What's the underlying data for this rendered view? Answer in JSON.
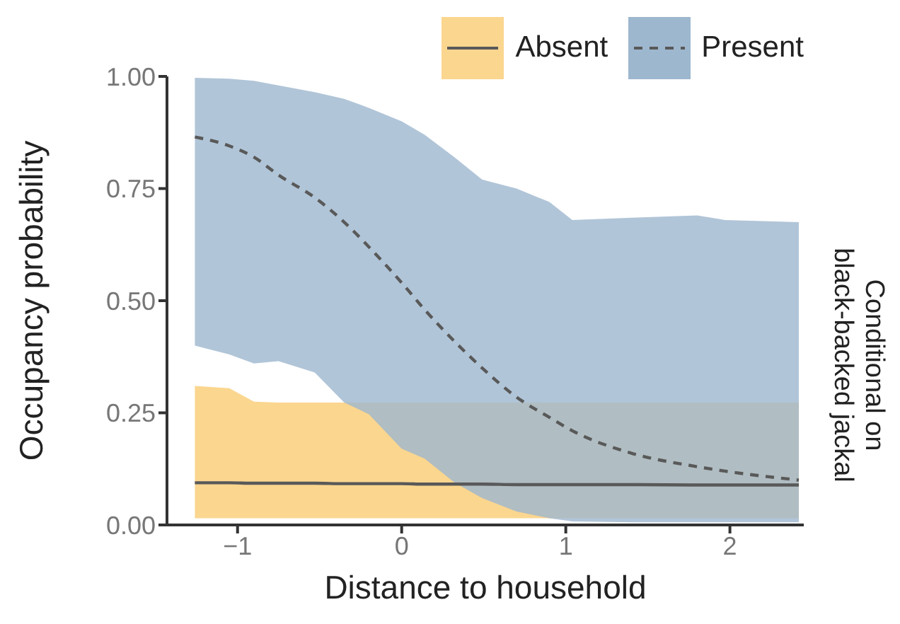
{
  "chart_data": {
    "type": "line",
    "xlabel": "Distance to household",
    "ylabel": "Occupancy probability",
    "y2label": "Conditional on\nblack-backed jackal",
    "x": [
      -1.26,
      -1.05,
      -0.9,
      -0.75,
      -0.53,
      -0.35,
      -0.2,
      0,
      0.14,
      0.32,
      0.49,
      0.7,
      0.9,
      1.04,
      1.4,
      1.8,
      1.97,
      2.42
    ],
    "series": [
      {
        "name": "Absent",
        "color": "#595959",
        "line_style": "solid",
        "values": [
          0.094,
          0.094,
          0.093,
          0.093,
          0.093,
          0.092,
          0.092,
          0.092,
          0.091,
          0.091,
          0.091,
          0.09,
          0.09,
          0.09,
          0.09,
          0.089,
          0.089,
          0.089
        ],
        "lower": [
          0.015,
          0.015,
          0.015,
          0.015,
          0.015,
          0.015,
          0.015,
          0.015,
          0.015,
          0.015,
          0.015,
          0.015,
          0.015,
          0.015,
          0.015,
          0.015,
          0.015,
          0.015
        ],
        "upper": [
          0.31,
          0.305,
          0.275,
          0.273,
          0.273,
          0.273,
          0.273,
          0.273,
          0.273,
          0.273,
          0.273,
          0.273,
          0.273,
          0.273,
          0.273,
          0.273,
          0.273,
          0.273
        ]
      },
      {
        "name": "Present",
        "color": "#595959",
        "line_style": "dashed",
        "values": [
          0.865,
          0.845,
          0.82,
          0.78,
          0.73,
          0.675,
          0.62,
          0.54,
          0.48,
          0.41,
          0.35,
          0.285,
          0.24,
          0.21,
          0.16,
          0.13,
          0.12,
          0.1
        ],
        "lower": [
          0.4,
          0.38,
          0.36,
          0.365,
          0.34,
          0.273,
          0.247,
          0.17,
          0.148,
          0.095,
          0.06,
          0.03,
          0.015,
          0.008,
          0.006,
          0.006,
          0.006,
          0.006
        ],
        "upper": [
          0.997,
          0.995,
          0.99,
          0.98,
          0.965,
          0.95,
          0.93,
          0.9,
          0.87,
          0.82,
          0.77,
          0.75,
          0.72,
          0.68,
          0.685,
          0.69,
          0.68,
          0.675
        ]
      }
    ],
    "xlim": [
      -1.43,
      2.45
    ],
    "xticks": [
      {
        "value": -1,
        "label": "−1"
      },
      0,
      1,
      2
    ],
    "ylim": [
      0,
      1
    ],
    "yticks": [
      {
        "value": 0,
        "label": "0.00"
      },
      {
        "value": 0.25,
        "label": "0.25"
      },
      {
        "value": 0.5,
        "label": "0.50"
      },
      {
        "value": 0.75,
        "label": "0.75"
      },
      {
        "value": 1,
        "label": "1.00"
      }
    ],
    "grid": false,
    "legend": "top right",
    "marker": "none"
  }
}
